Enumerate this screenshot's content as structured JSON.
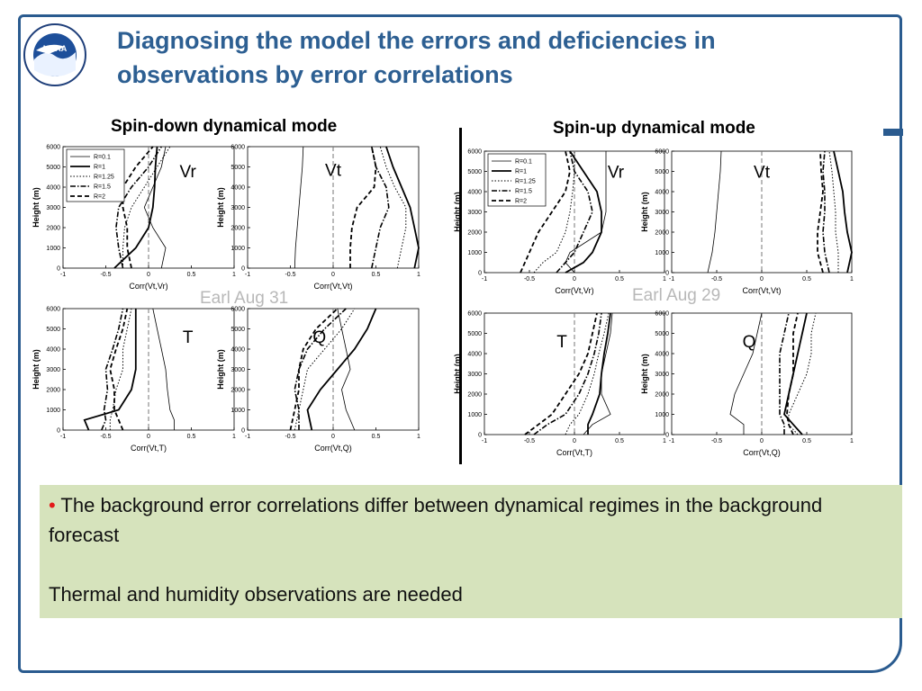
{
  "slide": {
    "title": "Diagnosing the model the errors and deficiencies in observations by error correlations",
    "logo_text": "NOAA",
    "left_heading": "Spin-down dynamical mode",
    "right_heading": "Spin-up dynamical mode",
    "left_case": "Earl Aug 31",
    "right_case": "Earl Aug 29",
    "bullet_marker": "•",
    "bullet_text": "The background error correlations differ between dynamical regimes in the background forecast",
    "note_text": "Thermal and humidity observations are needed",
    "colors": {
      "title": "#2d5f92",
      "frame": "#2a5b8f",
      "bullet_box": "#d6e3bc",
      "bullet_marker": "#e31a1a"
    }
  },
  "legend": [
    "R=0.1",
    "R=1",
    "R=1.25",
    "R=1.5",
    "R=2"
  ],
  "chart_data": [
    {
      "type": "line",
      "panel": "Spin-down dynamical mode",
      "label": "Vr",
      "xlabel": "Corr(Vt,Vr)",
      "ylabel": "Height (m)",
      "xlim": [
        -1,
        1
      ],
      "ylim": [
        0,
        6000
      ],
      "xticks": [
        -1,
        -0.5,
        0,
        0.5,
        1
      ],
      "yticks": [
        0,
        1000,
        2000,
        3000,
        4000,
        5000,
        6000
      ],
      "legend": true,
      "legend_position": "top-left",
      "y": [
        0,
        1000,
        2000,
        3000,
        4000,
        5000,
        6000
      ],
      "series": [
        {
          "name": "R=0.1",
          "x": [
            0.15,
            0.2,
            0.05,
            -0.05,
            0.05,
            0.15,
            0.2
          ]
        },
        {
          "name": "R=1",
          "x": [
            -0.4,
            -0.15,
            0.0,
            0.05,
            0.07,
            0.08,
            0.1
          ]
        },
        {
          "name": "R=1.25",
          "x": [
            -0.3,
            -0.3,
            -0.28,
            -0.2,
            -0.05,
            0.1,
            0.25
          ]
        },
        {
          "name": "R=1.5",
          "x": [
            -0.3,
            -0.35,
            -0.38,
            -0.35,
            -0.2,
            0.0,
            0.15
          ]
        },
        {
          "name": "R=2",
          "x": [
            -0.2,
            -0.25,
            -0.25,
            -0.3,
            -0.3,
            -0.15,
            0.05
          ]
        }
      ]
    },
    {
      "type": "line",
      "panel": "Spin-down dynamical mode",
      "label": "Vt",
      "xlabel": "Corr(Vt,Vt)",
      "ylabel": "Height (m)",
      "xlim": [
        -1,
        1
      ],
      "ylim": [
        0,
        6000
      ],
      "xticks": [
        -1,
        -0.5,
        0,
        0.5,
        1
      ],
      "yticks": [
        0,
        1000,
        2000,
        3000,
        4000,
        5000,
        6000
      ],
      "legend": false,
      "y": [
        0,
        1000,
        2000,
        3000,
        4000,
        5000,
        6000
      ],
      "series": [
        {
          "name": "R=0.1",
          "x": [
            -0.45,
            -0.44,
            -0.42,
            -0.4,
            -0.38,
            -0.36,
            -0.35
          ]
        },
        {
          "name": "R=1",
          "x": [
            0.95,
            1.0,
            0.95,
            0.9,
            0.8,
            0.7,
            0.62
          ]
        },
        {
          "name": "R=1.25",
          "x": [
            0.75,
            0.8,
            0.85,
            0.85,
            0.72,
            0.62,
            0.55
          ]
        },
        {
          "name": "R=1.5",
          "x": [
            0.45,
            0.5,
            0.55,
            0.65,
            0.62,
            0.5,
            0.45
          ]
        },
        {
          "name": "R=2",
          "x": [
            0.2,
            0.2,
            0.22,
            0.28,
            0.48,
            0.5,
            0.45
          ]
        }
      ]
    },
    {
      "type": "line",
      "panel": "Spin-down dynamical mode",
      "label": "T",
      "xlabel": "Corr(Vt,T)",
      "ylabel": "Height (m)",
      "xlim": [
        -1,
        1
      ],
      "ylim": [
        0,
        6000
      ],
      "xticks": [
        -1,
        -0.5,
        0,
        0.5,
        1
      ],
      "yticks": [
        0,
        1000,
        2000,
        3000,
        4000,
        5000,
        6000
      ],
      "legend": false,
      "y": [
        0,
        500,
        1000,
        2000,
        3000,
        4000,
        5000,
        6000
      ],
      "series": [
        {
          "name": "R=0.1",
          "x": [
            0.3,
            0.3,
            0.25,
            0.22,
            0.2,
            0.15,
            0.1,
            0.05
          ]
        },
        {
          "name": "R=1",
          "x": [
            -0.7,
            -0.75,
            -0.35,
            -0.2,
            -0.15,
            -0.15,
            -0.15,
            -0.15
          ]
        },
        {
          "name": "R=1.25",
          "x": [
            -0.45,
            -0.45,
            -0.42,
            -0.38,
            -0.3,
            -0.3,
            -0.25,
            -0.2
          ]
        },
        {
          "name": "R=1.5",
          "x": [
            -0.55,
            -0.5,
            -0.52,
            -0.48,
            -0.5,
            -0.42,
            -0.35,
            -0.3
          ]
        },
        {
          "name": "R=2",
          "x": [
            -0.3,
            -0.35,
            -0.4,
            -0.4,
            -0.45,
            -0.38,
            -0.3,
            -0.25
          ]
        }
      ]
    },
    {
      "type": "line",
      "panel": "Spin-down dynamical mode",
      "label": "Q",
      "xlabel": "Corr(Vt,Q)",
      "ylabel": "Height (m)",
      "xlim": [
        -1,
        1
      ],
      "ylim": [
        0,
        6000
      ],
      "xticks": [
        -1,
        -0.5,
        0,
        0.5,
        1
      ],
      "yticks": [
        0,
        1000,
        2000,
        3000,
        4000,
        5000,
        6000
      ],
      "legend": false,
      "y": [
        0,
        1000,
        2000,
        3000,
        4000,
        5000,
        6000
      ],
      "series": [
        {
          "name": "R=0.1",
          "x": [
            0.25,
            0.15,
            0.1,
            0.2,
            0.15,
            0.1,
            0.05
          ]
        },
        {
          "name": "R=1",
          "x": [
            -0.25,
            -0.3,
            -0.15,
            0.05,
            0.25,
            0.4,
            0.5
          ]
        },
        {
          "name": "R=1.25",
          "x": [
            -0.45,
            -0.4,
            -0.35,
            -0.3,
            -0.1,
            0.1,
            0.25
          ]
        },
        {
          "name": "R=1.5",
          "x": [
            -0.4,
            -0.4,
            -0.45,
            -0.4,
            -0.3,
            -0.1,
            0.15
          ]
        },
        {
          "name": "R=2",
          "x": [
            -0.5,
            -0.45,
            -0.4,
            -0.4,
            -0.35,
            -0.2,
            0.05
          ]
        }
      ]
    },
    {
      "type": "line",
      "panel": "Spin-up dynamical mode",
      "label": "Vr",
      "xlabel": "Corr(Vt,Vr)",
      "ylabel": "Height (m)",
      "xlim": [
        -1,
        1
      ],
      "ylim": [
        0,
        6000
      ],
      "xticks": [
        -1,
        -0.5,
        0,
        0.5,
        1
      ],
      "yticks": [
        0,
        1000,
        2000,
        3000,
        4000,
        5000,
        6000
      ],
      "legend": true,
      "legend_position": "top-left",
      "y": [
        0,
        500,
        1000,
        2000,
        3000,
        4000,
        5000,
        6000
      ],
      "series": [
        {
          "name": "R=0.1",
          "x": [
            0.0,
            -0.1,
            -0.05,
            0.3,
            0.35,
            0.35,
            0.35,
            0.35
          ]
        },
        {
          "name": "R=1",
          "x": [
            -0.1,
            0.1,
            0.2,
            0.3,
            0.3,
            0.25,
            0.1,
            -0.05
          ]
        },
        {
          "name": "R=1.25",
          "x": [
            -0.45,
            -0.35,
            -0.2,
            -0.1,
            -0.05,
            -0.02,
            0.0,
            0.0
          ]
        },
        {
          "name": "R=1.5",
          "x": [
            -0.2,
            -0.1,
            0.0,
            0.1,
            0.2,
            0.15,
            0.0,
            -0.05
          ]
        },
        {
          "name": "R=2",
          "x": [
            -0.6,
            -0.55,
            -0.5,
            -0.4,
            -0.25,
            -0.1,
            -0.05,
            -0.1
          ]
        }
      ]
    },
    {
      "type": "line",
      "panel": "Spin-up dynamical mode",
      "label": "Vt",
      "xlabel": "Corr(Vt,Vt)",
      "ylabel": "Height (m)",
      "xlim": [
        -1,
        1
      ],
      "ylim": [
        0,
        6000
      ],
      "xticks": [
        -1,
        -0.5,
        0,
        0.5,
        1
      ],
      "yticks": [
        0,
        1000,
        2000,
        3000,
        4000,
        5000,
        6000
      ],
      "legend": false,
      "y": [
        0,
        1000,
        2000,
        3000,
        4000,
        5000,
        6000
      ],
      "series": [
        {
          "name": "R=0.1",
          "x": [
            -0.6,
            -0.55,
            -0.52,
            -0.5,
            -0.48,
            -0.46,
            -0.45
          ]
        },
        {
          "name": "R=1",
          "x": [
            0.95,
            1.0,
            0.95,
            0.92,
            0.9,
            0.85,
            0.8
          ]
        },
        {
          "name": "R=1.25",
          "x": [
            0.85,
            0.85,
            0.82,
            0.82,
            0.8,
            0.78,
            0.75
          ]
        },
        {
          "name": "R=1.5",
          "x": [
            0.75,
            0.7,
            0.68,
            0.7,
            0.7,
            0.68,
            0.7
          ]
        },
        {
          "name": "R=2",
          "x": [
            0.68,
            0.62,
            0.62,
            0.65,
            0.68,
            0.66,
            0.65
          ]
        }
      ]
    },
    {
      "type": "line",
      "panel": "Spin-up dynamical mode",
      "label": "T",
      "xlabel": "Corr(Vt,T)",
      "ylabel": "Height (m)",
      "xlim": [
        -1,
        1
      ],
      "ylim": [
        0,
        6000
      ],
      "xticks": [
        -1,
        -0.5,
        0,
        0.5,
        1
      ],
      "yticks": [
        0,
        1000,
        2000,
        3000,
        4000,
        5000,
        6000
      ],
      "legend": false,
      "y": [
        0,
        500,
        1000,
        2000,
        3000,
        4000,
        5000,
        6000
      ],
      "series": [
        {
          "name": "R=0.1",
          "x": [
            0.1,
            0.2,
            0.4,
            0.3,
            0.3,
            0.35,
            0.4,
            0.42
          ]
        },
        {
          "name": "R=1",
          "x": [
            0.15,
            0.15,
            0.2,
            0.28,
            0.3,
            0.33,
            0.37,
            0.4
          ]
        },
        {
          "name": "R=1.25",
          "x": [
            -0.1,
            -0.05,
            0.05,
            0.15,
            0.22,
            0.27,
            0.33,
            0.38
          ]
        },
        {
          "name": "R=1.5",
          "x": [
            -0.45,
            -0.3,
            -0.1,
            0.05,
            0.15,
            0.22,
            0.27,
            0.3
          ]
        },
        {
          "name": "R=2",
          "x": [
            -0.55,
            -0.4,
            -0.25,
            -0.1,
            0.05,
            0.15,
            0.2,
            0.25
          ]
        }
      ]
    },
    {
      "type": "line",
      "panel": "Spin-up dynamical mode",
      "label": "Q",
      "xlabel": "Corr(Vt,Q)",
      "ylabel": "Height (m)",
      "xlim": [
        -1,
        1
      ],
      "ylim": [
        0,
        6000
      ],
      "xticks": [
        -1,
        -0.5,
        0,
        0.5,
        1
      ],
      "yticks": [
        0,
        1000,
        2000,
        3000,
        4000,
        5000,
        6000
      ],
      "legend": false,
      "y": [
        0,
        500,
        1000,
        2000,
        3000,
        4000,
        5000,
        6000
      ],
      "series": [
        {
          "name": "R=0.1",
          "x": [
            -0.2,
            -0.2,
            -0.35,
            -0.3,
            -0.2,
            -0.1,
            -0.05,
            0.0
          ]
        },
        {
          "name": "R=1",
          "x": [
            0.45,
            0.35,
            0.25,
            0.3,
            0.35,
            0.4,
            0.45,
            0.5
          ]
        },
        {
          "name": "R=1.25",
          "x": [
            0.4,
            0.3,
            0.3,
            0.4,
            0.5,
            0.55,
            0.55,
            0.6
          ]
        },
        {
          "name": "R=1.5",
          "x": [
            0.25,
            0.25,
            0.2,
            0.2,
            0.2,
            0.2,
            0.25,
            0.3
          ]
        },
        {
          "name": "R=2",
          "x": [
            0.35,
            0.3,
            0.28,
            0.3,
            0.35,
            0.35,
            0.35,
            0.4
          ]
        }
      ]
    }
  ]
}
